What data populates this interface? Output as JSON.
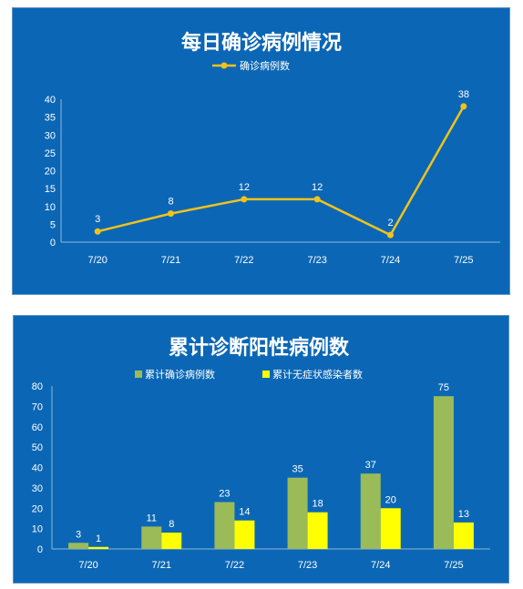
{
  "chart_data": [
    {
      "type": "line",
      "title": "每日确诊病例情况",
      "categories": [
        "7/20",
        "7/21",
        "7/22",
        "7/23",
        "7/24",
        "7/25"
      ],
      "series": [
        {
          "name": "确诊病例数",
          "values": [
            3,
            8,
            12,
            12,
            2,
            38
          ],
          "color": "#f2c21b"
        }
      ],
      "ylim": [
        0,
        40
      ],
      "yticks": [
        0,
        5,
        10,
        15,
        20,
        25,
        30,
        35,
        40
      ],
      "grid": false,
      "legend": "top-center",
      "background": "#0b67b5"
    },
    {
      "type": "bar",
      "title": "累计诊断阳性病例数",
      "categories": [
        "7/20",
        "7/21",
        "7/22",
        "7/23",
        "7/24",
        "7/25"
      ],
      "series": [
        {
          "name": "累计确诊病例数",
          "values": [
            3,
            11,
            23,
            35,
            37,
            75
          ],
          "color": "#9bbb59"
        },
        {
          "name": "累计无症状感染者数",
          "values": [
            1,
            8,
            14,
            18,
            20,
            13
          ],
          "color": "#ffff00"
        }
      ],
      "ylim": [
        0,
        80
      ],
      "yticks": [
        0,
        10,
        20,
        30,
        40,
        50,
        60,
        70,
        80
      ],
      "grid": false,
      "legend": "top-center",
      "background": "#0b67b5"
    }
  ]
}
